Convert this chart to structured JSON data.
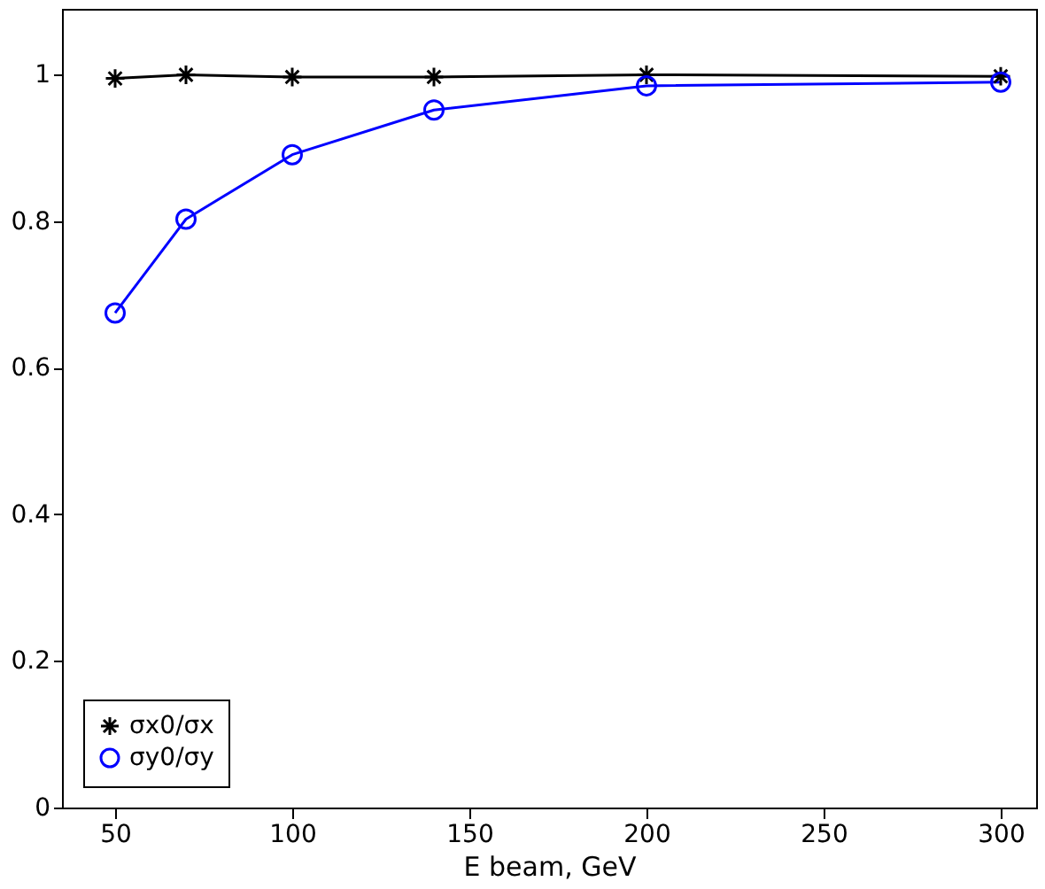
{
  "chart_data": {
    "type": "line",
    "xlabel": "E beam, GeV",
    "x": [
      50,
      70,
      100,
      140,
      200,
      300
    ],
    "series": [
      {
        "name": "σx0/σx",
        "color": "#000000",
        "marker": "cross",
        "values": [
          0.995,
          1.0,
          0.997,
          0.997,
          1.0,
          0.998
        ]
      },
      {
        "name": "σy0/σy",
        "color": "#0000ff",
        "marker": "circle",
        "values": [
          0.675,
          0.803,
          0.891,
          0.952,
          0.985,
          0.99
        ]
      }
    ],
    "xlim": [
      35,
      310
    ],
    "ylim": [
      0,
      1.09
    ],
    "xticks": [
      50,
      100,
      150,
      200,
      250,
      300
    ],
    "yticks": [
      0,
      0.2,
      0.4,
      0.6,
      0.8,
      1
    ],
    "legend": "bottom left",
    "grid": false,
    "line_style": "solid"
  }
}
